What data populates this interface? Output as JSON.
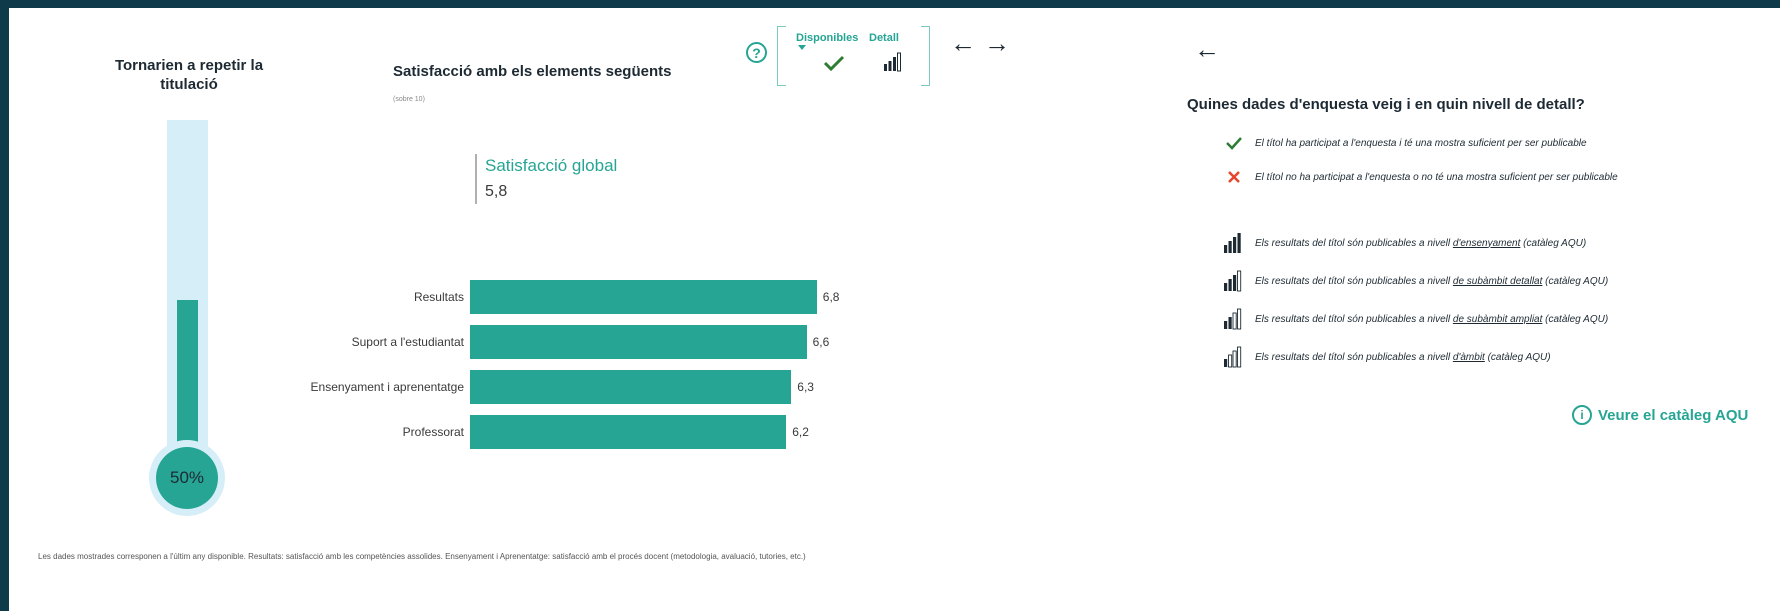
{
  "thermometer": {
    "title": "Tornarien a repetir la titulació",
    "value_label": "50%",
    "fill_fraction": 0.5
  },
  "chart": {
    "title": "Satisfacció amb els elements següents",
    "subtitle": "(sobre 10)",
    "kpi_label": "Satisfacció global",
    "kpi_value": "5,8"
  },
  "chart_data": {
    "type": "bar",
    "orientation": "horizontal",
    "title": "Satisfacció amb els elements següents",
    "categories": [
      "Resultats",
      "Suport a l'estudiantat",
      "Ensenyament i aprenentatge",
      "Professorat"
    ],
    "values": [
      6.8,
      6.6,
      6.3,
      6.2
    ],
    "value_labels": [
      "6,8",
      "6,6",
      "6,3",
      "6,2"
    ],
    "xlim": [
      0,
      10
    ],
    "color": "#26a594"
  },
  "footnote": "Les dades mostrades corresponen a l'últim any disponible. Resultats: satisfacció amb les competències assolides. Ensenyament i Aprenentatge: satisfacció amb el procés docent (metodologia, avaluació, tutories, etc.)",
  "toolbar": {
    "help_icon_text": "?",
    "toggle_available_label": "Disponibles",
    "toggle_detail_label": "Detall",
    "back_arrow": "←",
    "forward_arrow": "→"
  },
  "right_panel": {
    "back_arrow": "←",
    "title": "Quines dades d'enquesta veig i en quin nivell de detall?",
    "check_text": "El títol ha participat a l'enquesta i té una mostra suficient per ser publicable",
    "cross_text": "El títol no ha participat a l'enquesta o no té una mostra suficient per ser publicable",
    "levels": [
      {
        "prefix": "Els resultats del títol són publicables a nivell ",
        "link": "d'ensenyament",
        "suffix": " (catàleg AQU)",
        "bars_filled": 4
      },
      {
        "prefix": "Els resultats del títol són publicables a nivell ",
        "link": "de subàmbit detallat",
        "suffix": " (catàleg AQU)",
        "bars_filled": 3
      },
      {
        "prefix": "Els resultats del títol són publicables a nivell ",
        "link": "de subàmbit ampliat",
        "suffix": " (catàleg AQU)",
        "bars_filled": 2
      },
      {
        "prefix": "Els resultats del títol són publicables a nivell ",
        "link": "d'àmbit",
        "suffix": " (catàleg AQU)",
        "bars_filled": 1
      }
    ],
    "catalog_link_label": "Veure el catàleg AQU",
    "info_icon_text": "i"
  },
  "colors": {
    "accent": "#26a594",
    "frame": "#0e3a49",
    "thermo_tube": "#d6eef8",
    "error_red": "#e8452c",
    "check_green": "#2e7d32"
  }
}
